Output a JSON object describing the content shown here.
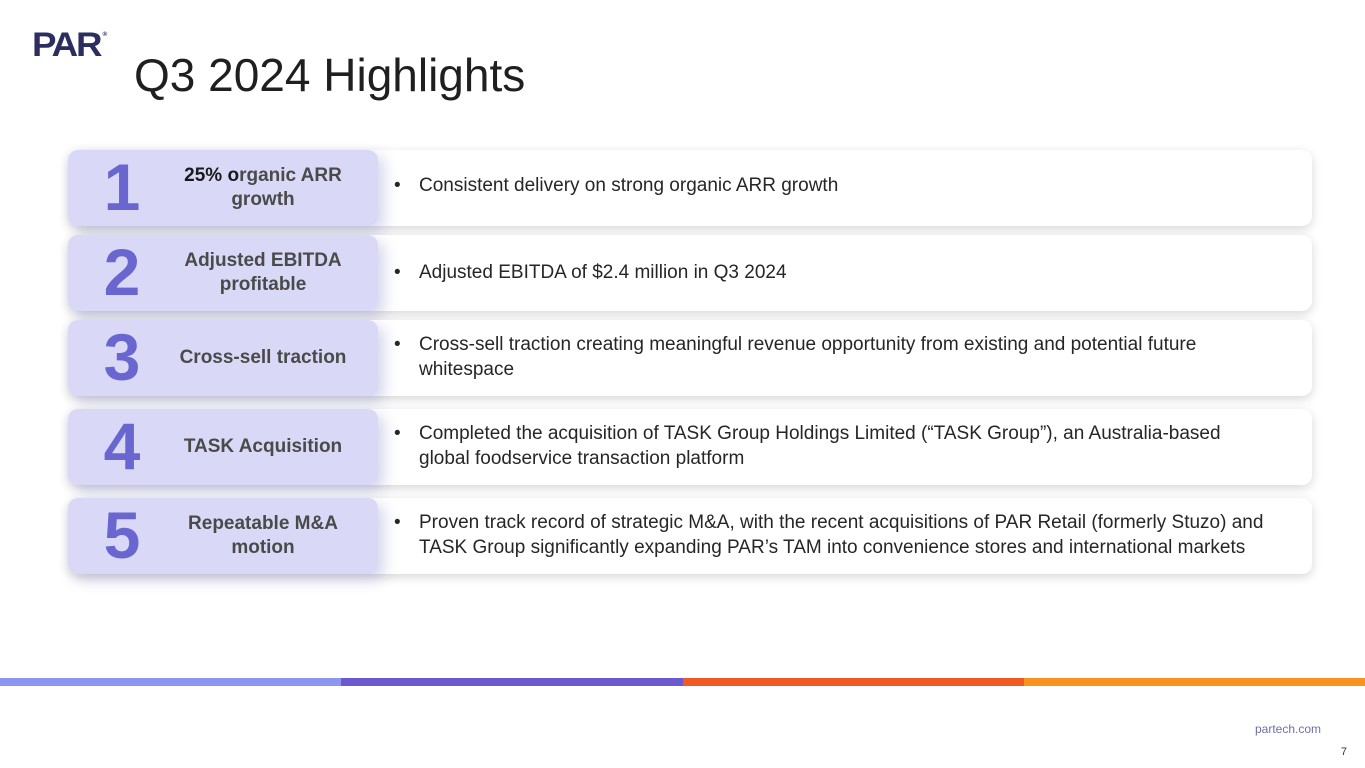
{
  "logo": {
    "text": "PAR",
    "mark": "®"
  },
  "title": "Q3 2024 Highlights",
  "highlights": [
    {
      "number": "1",
      "label_bold": "25% o",
      "label_rest": "rganic ARR growth",
      "bullets": [
        "Consistent delivery on strong organic ARR growth"
      ]
    },
    {
      "number": "2",
      "label_bold": "",
      "label_rest": "Adjusted EBITDA profitable",
      "bullets": [
        "Adjusted EBITDA of $2.4 million in Q3 2024"
      ]
    },
    {
      "number": "3",
      "label_bold": "",
      "label_rest": "Cross-sell traction",
      "bullets": [
        "Cross-sell traction creating meaningful revenue opportunity from existing and potential future whitespace"
      ]
    },
    {
      "number": "4",
      "label_bold": "",
      "label_rest": "TASK Acquisition",
      "bullets": [
        "Completed the acquisition of TASK Group Holdings Limited (“TASK Group”), an Australia-based global foodservice transaction platform"
      ]
    },
    {
      "number": "5",
      "label_bold": "",
      "label_rest": "Repeatable M&A motion",
      "bullets": [
        "Proven track record of strategic M&A, with the recent acquisitions of PAR Retail (formerly Stuzo) and TASK Group significantly expanding PAR’s TAM into convenience stores and international markets"
      ]
    }
  ],
  "colors": {
    "number": "#6a66cf",
    "label_bg": "#d9d9f7",
    "stripe": [
      "#8b96ee",
      "#6a5acd",
      "#f15a24",
      "#f7931e"
    ]
  },
  "footer": {
    "url": "partech.com",
    "page": "7"
  }
}
